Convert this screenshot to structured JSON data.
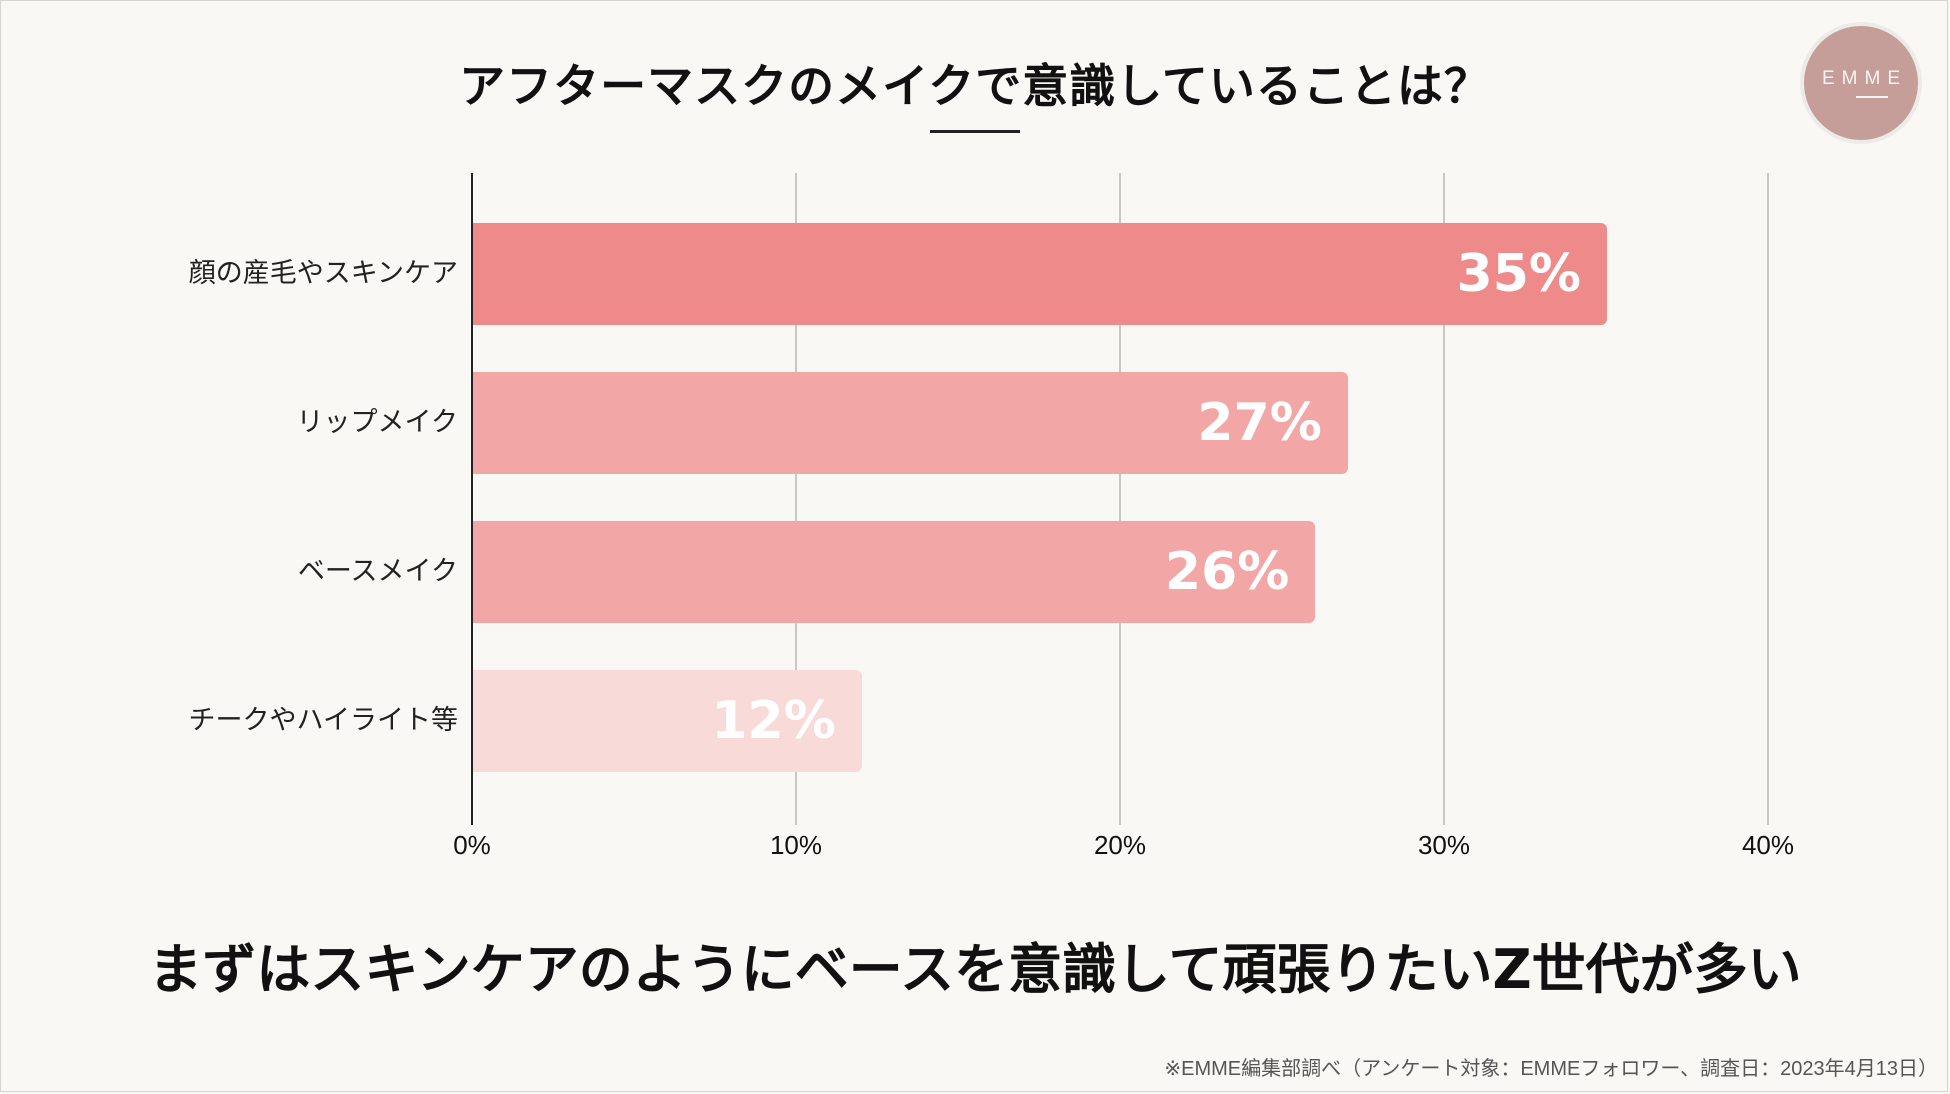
{
  "title": "アフターマスクのメイクで意識していることは？",
  "logo": {
    "text": "EMME"
  },
  "takeaway": "まずはスキンケアのようにベースを意識して頑張りたいZ世代が多い",
  "source": "※EMME編集部調べ（アンケート対象：EMMEフォロワー、調査日：2023年4月13日）",
  "bars": [
    {
      "label": "顔の産毛やスキンケア",
      "value": 35,
      "display": "35%",
      "color": "#ee8a89"
    },
    {
      "label": "リップメイク",
      "value": 27,
      "display": "27%",
      "color": "#f2a7a6"
    },
    {
      "label": "ベースメイク",
      "value": 26,
      "display": "26%",
      "color": "#f2a7a6"
    },
    {
      "label": "チークやハイライト等",
      "value": 12,
      "display": "12%",
      "color": "#f8dad9"
    }
  ],
  "axis": {
    "ticks": [
      "0%",
      "10%",
      "20%",
      "30%",
      "40%"
    ]
  },
  "chart_data": {
    "type": "bar",
    "orientation": "horizontal",
    "title": "アフターマスクのメイクで意識していることは？",
    "categories": [
      "顔の産毛やスキンケア",
      "リップメイク",
      "ベースメイク",
      "チークやハイライト等"
    ],
    "values": [
      35,
      27,
      26,
      12
    ],
    "data_labels": [
      "35%",
      "27%",
      "26%",
      "12%"
    ],
    "xlabel": "",
    "ylabel": "",
    "xlim": [
      0,
      40
    ],
    "x_ticks": [
      "0%",
      "10%",
      "20%",
      "30%",
      "40%"
    ],
    "grid": true,
    "legend": null,
    "annotation": "まずはスキンケアのようにベースを意識して頑張りたいZ世代が多い",
    "source_note": "※EMME編集部調べ（アンケート対象：EMMEフォロワー、調査日：2023年4月13日）"
  }
}
